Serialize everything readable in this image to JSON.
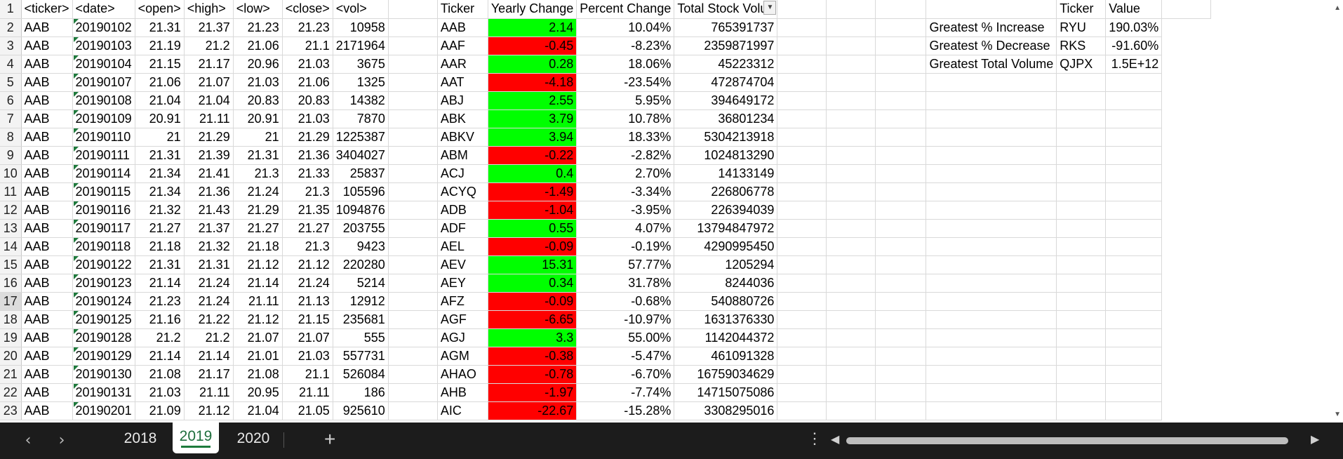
{
  "columns_a_to_g_headers": [
    "<ticker>",
    "<date>",
    "<open>",
    "<high>",
    "<low>",
    "<close>",
    "<vol>"
  ],
  "summary_headers": {
    "ticker": "Ticker",
    "yearly_change": "Yearly Change",
    "percent_change": "Percent Change",
    "total_volume": "Total Stock Volun"
  },
  "greatest_headers": {
    "ticker": "Ticker",
    "value": "Value"
  },
  "greatest": [
    {
      "label": "Greatest % Increase",
      "ticker": "RYU",
      "value": "190.03%"
    },
    {
      "label": "Greatest % Decrease",
      "ticker": "RKS",
      "value": "-91.60%"
    },
    {
      "label": "Greatest Total Volume",
      "ticker": "QJPX",
      "value": "1.5E+12"
    }
  ],
  "rows": [
    {
      "n": "2",
      "ticker": "AAB",
      "date": "20190102",
      "open": "21.31",
      "high": "21.37",
      "low": "21.23",
      "close": "21.23",
      "vol": "10958",
      "s_ticker": "AAB",
      "yc": "2.14",
      "pc": "10.04%",
      "tv": "765391737",
      "color": "green"
    },
    {
      "n": "3",
      "ticker": "AAB",
      "date": "20190103",
      "open": "21.19",
      "high": "21.2",
      "low": "21.06",
      "close": "21.1",
      "vol": "2171964",
      "s_ticker": "AAF",
      "yc": "-0.45",
      "pc": "-8.23%",
      "tv": "2359871997",
      "color": "red"
    },
    {
      "n": "4",
      "ticker": "AAB",
      "date": "20190104",
      "open": "21.15",
      "high": "21.17",
      "low": "20.96",
      "close": "21.03",
      "vol": "3675",
      "s_ticker": "AAR",
      "yc": "0.28",
      "pc": "18.06%",
      "tv": "45223312",
      "color": "green"
    },
    {
      "n": "5",
      "ticker": "AAB",
      "date": "20190107",
      "open": "21.06",
      "high": "21.07",
      "low": "21.03",
      "close": "21.06",
      "vol": "1325",
      "s_ticker": "AAT",
      "yc": "-4.18",
      "pc": "-23.54%",
      "tv": "472874704",
      "color": "red"
    },
    {
      "n": "6",
      "ticker": "AAB",
      "date": "20190108",
      "open": "21.04",
      "high": "21.04",
      "low": "20.83",
      "close": "20.83",
      "vol": "14382",
      "s_ticker": "ABJ",
      "yc": "2.55",
      "pc": "5.95%",
      "tv": "394649172",
      "color": "green"
    },
    {
      "n": "7",
      "ticker": "AAB",
      "date": "20190109",
      "open": "20.91",
      "high": "21.11",
      "low": "20.91",
      "close": "21.03",
      "vol": "7870",
      "s_ticker": "ABK",
      "yc": "3.79",
      "pc": "10.78%",
      "tv": "36801234",
      "color": "green"
    },
    {
      "n": "8",
      "ticker": "AAB",
      "date": "20190110",
      "open": "21",
      "high": "21.29",
      "low": "21",
      "close": "21.29",
      "vol": "1225387",
      "s_ticker": "ABKV",
      "yc": "3.94",
      "pc": "18.33%",
      "tv": "5304213918",
      "color": "green"
    },
    {
      "n": "9",
      "ticker": "AAB",
      "date": "20190111",
      "open": "21.31",
      "high": "21.39",
      "low": "21.31",
      "close": "21.36",
      "vol": "3404027",
      "s_ticker": "ABM",
      "yc": "-0.22",
      "pc": "-2.82%",
      "tv": "1024813290",
      "color": "red"
    },
    {
      "n": "10",
      "ticker": "AAB",
      "date": "20190114",
      "open": "21.34",
      "high": "21.41",
      "low": "21.3",
      "close": "21.33",
      "vol": "25837",
      "s_ticker": "ACJ",
      "yc": "0.4",
      "pc": "2.70%",
      "tv": "14133149",
      "color": "green"
    },
    {
      "n": "11",
      "ticker": "AAB",
      "date": "20190115",
      "open": "21.34",
      "high": "21.36",
      "low": "21.24",
      "close": "21.3",
      "vol": "105596",
      "s_ticker": "ACYQ",
      "yc": "-1.49",
      "pc": "-3.34%",
      "tv": "226806778",
      "color": "red"
    },
    {
      "n": "12",
      "ticker": "AAB",
      "date": "20190116",
      "open": "21.32",
      "high": "21.43",
      "low": "21.29",
      "close": "21.35",
      "vol": "1094876",
      "s_ticker": "ADB",
      "yc": "-1.04",
      "pc": "-3.95%",
      "tv": "226394039",
      "color": "red"
    },
    {
      "n": "13",
      "ticker": "AAB",
      "date": "20190117",
      "open": "21.27",
      "high": "21.37",
      "low": "21.27",
      "close": "21.27",
      "vol": "203755",
      "s_ticker": "ADF",
      "yc": "0.55",
      "pc": "4.07%",
      "tv": "13794847972",
      "color": "green"
    },
    {
      "n": "14",
      "ticker": "AAB",
      "date": "20190118",
      "open": "21.18",
      "high": "21.32",
      "low": "21.18",
      "close": "21.3",
      "vol": "9423",
      "s_ticker": "AEL",
      "yc": "-0.09",
      "pc": "-0.19%",
      "tv": "4290995450",
      "color": "red"
    },
    {
      "n": "15",
      "ticker": "AAB",
      "date": "20190122",
      "open": "21.31",
      "high": "21.31",
      "low": "21.12",
      "close": "21.12",
      "vol": "220280",
      "s_ticker": "AEV",
      "yc": "15.31",
      "pc": "57.77%",
      "tv": "1205294",
      "color": "green"
    },
    {
      "n": "16",
      "ticker": "AAB",
      "date": "20190123",
      "open": "21.14",
      "high": "21.24",
      "low": "21.14",
      "close": "21.24",
      "vol": "5214",
      "s_ticker": "AEY",
      "yc": "0.34",
      "pc": "31.78%",
      "tv": "8244036",
      "color": "green"
    },
    {
      "n": "17",
      "ticker": "AAB",
      "date": "20190124",
      "open": "21.23",
      "high": "21.24",
      "low": "21.11",
      "close": "21.13",
      "vol": "12912",
      "s_ticker": "AFZ",
      "yc": "-0.09",
      "pc": "-0.68%",
      "tv": "540880726",
      "color": "red"
    },
    {
      "n": "18",
      "ticker": "AAB",
      "date": "20190125",
      "open": "21.16",
      "high": "21.22",
      "low": "21.12",
      "close": "21.15",
      "vol": "235681",
      "s_ticker": "AGF",
      "yc": "-6.65",
      "pc": "-10.97%",
      "tv": "1631376330",
      "color": "red"
    },
    {
      "n": "19",
      "ticker": "AAB",
      "date": "20190128",
      "open": "21.2",
      "high": "21.2",
      "low": "21.07",
      "close": "21.07",
      "vol": "555",
      "s_ticker": "AGJ",
      "yc": "3.3",
      "pc": "55.00%",
      "tv": "1142044372",
      "color": "green"
    },
    {
      "n": "20",
      "ticker": "AAB",
      "date": "20190129",
      "open": "21.14",
      "high": "21.14",
      "low": "21.01",
      "close": "21.03",
      "vol": "557731",
      "s_ticker": "AGM",
      "yc": "-0.38",
      "pc": "-5.47%",
      "tv": "461091328",
      "color": "red"
    },
    {
      "n": "21",
      "ticker": "AAB",
      "date": "20190130",
      "open": "21.08",
      "high": "21.17",
      "low": "21.08",
      "close": "21.1",
      "vol": "526084",
      "s_ticker": "AHAO",
      "yc": "-0.78",
      "pc": "-6.70%",
      "tv": "16759034629",
      "color": "red"
    },
    {
      "n": "22",
      "ticker": "AAB",
      "date": "20190131",
      "open": "21.03",
      "high": "21.11",
      "low": "20.95",
      "close": "21.11",
      "vol": "186",
      "s_ticker": "AHB",
      "yc": "-1.97",
      "pc": "-7.74%",
      "tv": "14715075086",
      "color": "red"
    },
    {
      "n": "23",
      "ticker": "AAB",
      "date": "20190201",
      "open": "21.09",
      "high": "21.12",
      "low": "21.04",
      "close": "21.05",
      "vol": "925610",
      "s_ticker": "AIC",
      "yc": "-22.67",
      "pc": "-15.28%",
      "tv": "3308295016",
      "color": "red"
    }
  ],
  "colors": {
    "positive": "#00ff00",
    "negative": "#ff0000",
    "active_tab": "#1e7a3c",
    "bottom_bar": "#1c1c1c"
  },
  "sheet_tabs": [
    "2018",
    "2019",
    "2020"
  ],
  "active_tab": "2019",
  "bottom": {
    "prev_icon": "chevron-left-icon",
    "next_icon": "chevron-right-icon",
    "add_icon": "plus-icon",
    "more_icon": "more-vertical-icon"
  }
}
